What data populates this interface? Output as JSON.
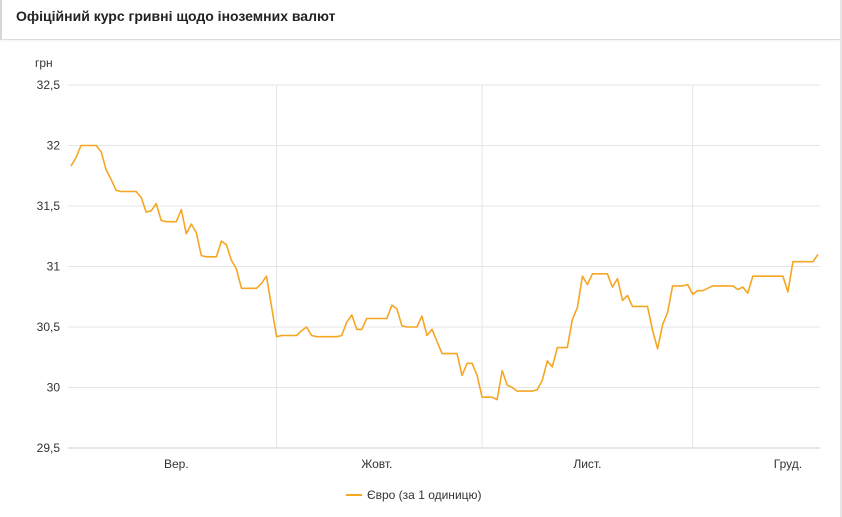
{
  "header": {
    "title": "Офіційний курс гривні щодо іноземних валют"
  },
  "colors": {
    "series": "#f5a623",
    "grid": "#e5e5e5",
    "axis": "#cfcfcf",
    "text": "#333333"
  },
  "chart_data": {
    "type": "line",
    "title": "",
    "ylabel": "грн",
    "xlabel": "",
    "ylim": [
      29.5,
      32.5
    ],
    "yticks": [
      29.5,
      30,
      30.5,
      31,
      31.5,
      32,
      32.5
    ],
    "ytick_labels": [
      "29,5",
      "30",
      "30,5",
      "31",
      "31,5",
      "32",
      "32,5"
    ],
    "xticks": [
      {
        "label": "Вер.",
        "index": 21
      },
      {
        "label": "Жовт.",
        "index": 61
      },
      {
        "label": "Лист.",
        "index": 103
      },
      {
        "label": "Груд.",
        "index": 143
      }
    ],
    "month_boundaries": [
      41,
      82,
      124,
      164
    ],
    "grid": true,
    "legend_position": "bottom-center",
    "series": [
      {
        "name": "Євро (за 1 одиницю)",
        "values": [
          31.83,
          31.9,
          32.0,
          32.0,
          32.0,
          32.0,
          31.95,
          31.8,
          31.72,
          31.63,
          31.62,
          31.62,
          31.62,
          31.62,
          31.57,
          31.45,
          31.46,
          31.52,
          31.38,
          31.37,
          31.37,
          31.37,
          31.47,
          31.27,
          31.35,
          31.28,
          31.09,
          31.08,
          31.08,
          31.08,
          31.21,
          31.18,
          31.05,
          30.98,
          30.82,
          30.82,
          30.82,
          30.82,
          30.86,
          30.92,
          30.67,
          30.42,
          30.43,
          30.43,
          30.43,
          30.43,
          30.47,
          30.5,
          30.43,
          30.42,
          30.42,
          30.42,
          30.42,
          30.42,
          30.43,
          30.54,
          30.6,
          30.48,
          30.48,
          30.57,
          30.57,
          30.57,
          30.57,
          30.57,
          30.68,
          30.65,
          30.51,
          30.5,
          30.5,
          30.5,
          30.59,
          30.43,
          30.48,
          30.38,
          30.28,
          30.28,
          30.28,
          30.28,
          30.1,
          30.2,
          30.2,
          30.1,
          29.92,
          29.92,
          29.92,
          29.9,
          30.14,
          30.02,
          30.0,
          29.97,
          29.97,
          29.97,
          29.97,
          29.98,
          30.06,
          30.22,
          30.17,
          30.33,
          30.33,
          30.33,
          30.56,
          30.66,
          30.92,
          30.85,
          30.94,
          30.94,
          30.94,
          30.94,
          30.83,
          30.9,
          30.72,
          30.76,
          30.67,
          30.67,
          30.67,
          30.67,
          30.47,
          30.32,
          30.52,
          30.62,
          30.84,
          30.84,
          30.84,
          30.85,
          30.77,
          30.8,
          30.8,
          30.82,
          30.84,
          30.84,
          30.84,
          30.84,
          30.84,
          30.81,
          30.83,
          30.78,
          30.92,
          30.92,
          30.92,
          30.92,
          30.92,
          30.92,
          30.92,
          30.79,
          31.04,
          31.04,
          31.04,
          31.04,
          31.04,
          31.1
        ]
      }
    ]
  }
}
